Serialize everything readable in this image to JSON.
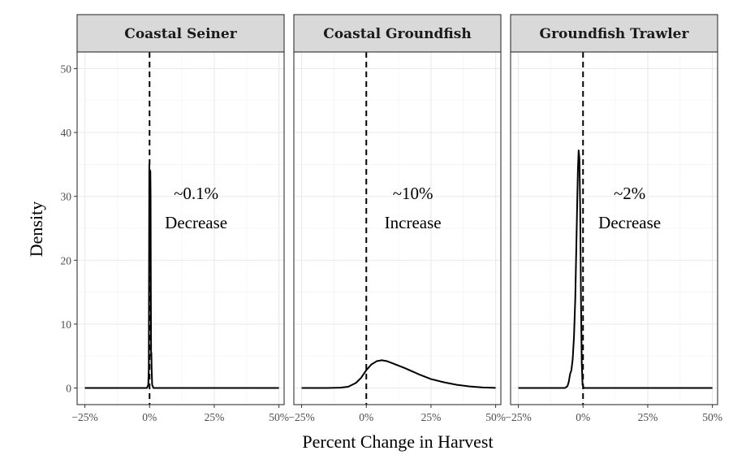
{
  "chart_data": {
    "type": "line",
    "xlabel": "Percent Change in Harvest",
    "ylabel": "Density",
    "xlim": [
      -0.28,
      0.52
    ],
    "ylim": [
      -2.6,
      52.6
    ],
    "x_ticks": [
      -0.25,
      0,
      0.25,
      0.5
    ],
    "x_tick_labels": [
      "−25%",
      "0%",
      "25%",
      "50%"
    ],
    "y_ticks": [
      0,
      10,
      20,
      30,
      40,
      50
    ],
    "y_tick_labels": [
      "0",
      "10",
      "20",
      "30",
      "40",
      "50"
    ],
    "reference_line_x": 0,
    "grid": true,
    "colors": {
      "strip_fill": "#d9d9d9",
      "panel_border": "#333333",
      "grid": "#ebebeb",
      "line": "#000000"
    },
    "panels": [
      {
        "title": "Coastal Seiner",
        "annotation": [
          "~0.1%",
          "Decrease"
        ],
        "annotation_pos": [
          0.18,
          29.6
        ],
        "points": [
          [
            -0.25,
            0
          ],
          [
            -0.01,
            0
          ],
          [
            -0.005,
            0.5
          ],
          [
            -0.003,
            3
          ],
          [
            -0.002,
            18
          ],
          [
            -0.001,
            35
          ],
          [
            0,
            33
          ],
          [
            0.001,
            25
          ],
          [
            0.002,
            22
          ],
          [
            0.003,
            34
          ],
          [
            0.004,
            30
          ],
          [
            0.005,
            15
          ],
          [
            0.006,
            5
          ],
          [
            0.007,
            5.5
          ],
          [
            0.008,
            3
          ],
          [
            0.01,
            0.5
          ],
          [
            0.015,
            0
          ],
          [
            0.5,
            0
          ]
        ]
      },
      {
        "title": "Coastal Groundfish",
        "annotation": [
          "~10%",
          "Increase"
        ],
        "annotation_pos": [
          0.18,
          29.6
        ],
        "points": [
          [
            -0.25,
            0
          ],
          [
            -0.15,
            0
          ],
          [
            -0.1,
            0.05
          ],
          [
            -0.07,
            0.2
          ],
          [
            -0.04,
            0.8
          ],
          [
            -0.02,
            1.6
          ],
          [
            0,
            2.8
          ],
          [
            0.02,
            3.7
          ],
          [
            0.04,
            4.2
          ],
          [
            0.06,
            4.35
          ],
          [
            0.08,
            4.2
          ],
          [
            0.1,
            3.9
          ],
          [
            0.15,
            3.1
          ],
          [
            0.2,
            2.2
          ],
          [
            0.25,
            1.4
          ],
          [
            0.3,
            0.9
          ],
          [
            0.35,
            0.5
          ],
          [
            0.4,
            0.25
          ],
          [
            0.45,
            0.08
          ],
          [
            0.5,
            0.02
          ]
        ]
      },
      {
        "title": "Groundfish Trawler",
        "annotation": [
          "~2%",
          "Decrease"
        ],
        "annotation_pos": [
          0.18,
          29.6
        ],
        "points": [
          [
            -0.25,
            0
          ],
          [
            -0.07,
            0
          ],
          [
            -0.06,
            0.3
          ],
          [
            -0.055,
            1
          ],
          [
            -0.05,
            2.2
          ],
          [
            -0.045,
            2.8
          ],
          [
            -0.04,
            4.5
          ],
          [
            -0.035,
            8
          ],
          [
            -0.03,
            14
          ],
          [
            -0.025,
            24
          ],
          [
            -0.02,
            34
          ],
          [
            -0.017,
            37.2
          ],
          [
            -0.014,
            36
          ],
          [
            -0.011,
            28
          ],
          [
            -0.008,
            14
          ],
          [
            -0.005,
            4
          ],
          [
            -0.002,
            0.5
          ],
          [
            0.003,
            0
          ],
          [
            0.5,
            0
          ]
        ]
      }
    ]
  }
}
